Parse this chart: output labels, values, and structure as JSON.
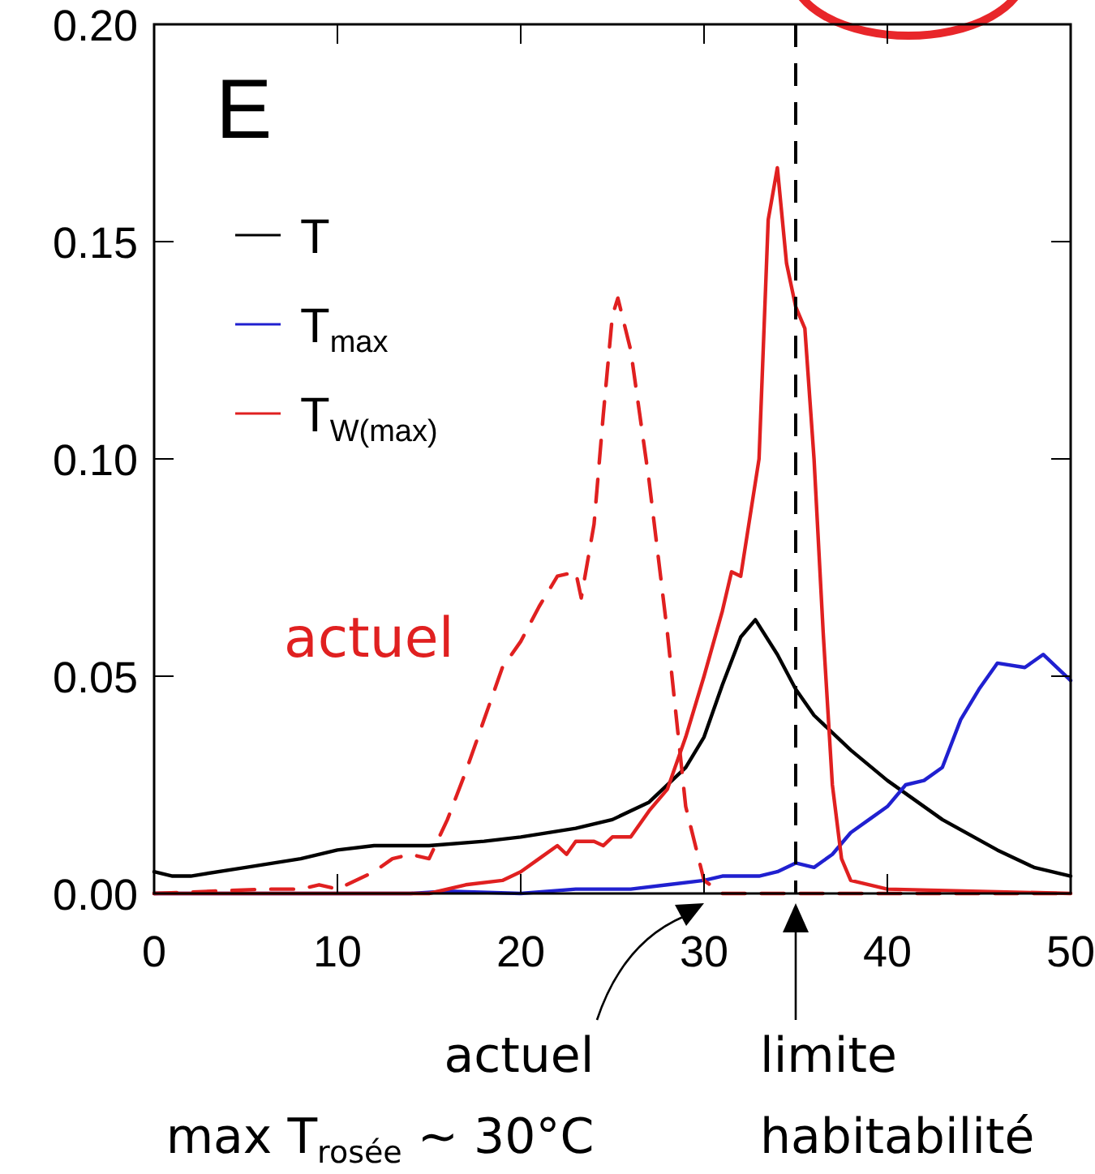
{
  "chart_data": {
    "type": "line",
    "title": "E",
    "xlim": [
      0,
      50
    ],
    "xticks": [
      0,
      10,
      20,
      30,
      40,
      50
    ],
    "ylim": [
      0,
      0.2
    ],
    "yticks": [
      {
        "value": 0,
        "label": "0.00"
      },
      {
        "value": 0.05,
        "label": "0.05"
      },
      {
        "value": 0.1,
        "label": "0.10"
      },
      {
        "value": 0.15,
        "label": "0.15"
      },
      {
        "value": 0.2,
        "label": "0.20"
      }
    ],
    "grid": false,
    "legend": "top left",
    "marker": "none",
    "series": [
      {
        "name": "T",
        "color": "#000000",
        "x": [
          0,
          1,
          2,
          5,
          8,
          10,
          12,
          15,
          18,
          20,
          23,
          25,
          27,
          29,
          30,
          31,
          32,
          32.8,
          34,
          35,
          36,
          38,
          40,
          43,
          46,
          48,
          50
        ],
        "values": [
          0.005,
          0.004,
          0.004,
          0.006,
          0.008,
          0.01,
          0.011,
          0.011,
          0.012,
          0.013,
          0.015,
          0.017,
          0.021,
          0.029,
          0.036,
          0.048,
          0.059,
          0.063,
          0.055,
          0.047,
          0.041,
          0.033,
          0.026,
          0.017,
          0.01,
          0.006,
          0.004
        ]
      },
      {
        "name": "T$_{max}$",
        "color": "#2020d0",
        "x": [
          0,
          14,
          16,
          20,
          23,
          26,
          28,
          30,
          31,
          33,
          34,
          35,
          36,
          37,
          38,
          39,
          40,
          41,
          42,
          43,
          44,
          45,
          46,
          47.5,
          48.5,
          50
        ],
        "values": [
          0,
          0,
          0.0005,
          0,
          0.001,
          0.001,
          0.002,
          0.003,
          0.004,
          0.004,
          0.005,
          0.007,
          0.006,
          0.009,
          0.014,
          0.017,
          0.02,
          0.025,
          0.026,
          0.029,
          0.04,
          0.047,
          0.053,
          0.052,
          0.055,
          0.049
        ]
      },
      {
        "name": "T$_{W(max)}$",
        "color": "#e02020",
        "x": [
          0,
          15,
          17,
          19,
          20,
          21,
          22,
          22.5,
          23,
          24,
          24.5,
          25,
          26,
          27,
          28,
          29,
          30,
          31,
          31.5,
          32,
          33,
          33.5,
          34,
          34.5,
          35,
          35.5,
          36,
          36.5,
          37,
          37.5,
          38,
          40,
          50
        ],
        "values": [
          0,
          0,
          0.002,
          0.003,
          0.005,
          0.008,
          0.011,
          0.009,
          0.012,
          0.012,
          0.011,
          0.013,
          0.013,
          0.019,
          0.024,
          0.036,
          0.05,
          0.065,
          0.074,
          0.073,
          0.1,
          0.155,
          0.167,
          0.145,
          0.135,
          0.13,
          0.1,
          0.06,
          0.025,
          0.008,
          0.003,
          0.001,
          0
        ]
      },
      {
        "color": "#e02020",
        "line_style": "dashed",
        "x": [
          0,
          6,
          8,
          9,
          10,
          12,
          13,
          14,
          15,
          16,
          17,
          18,
          19,
          20,
          21,
          22,
          23,
          23.3,
          24,
          24.5,
          25,
          25.3,
          26,
          26.5,
          27,
          28,
          29,
          30,
          31,
          50
        ],
        "values": [
          0,
          0.001,
          0.001,
          0.002,
          0.001,
          0.005,
          0.008,
          0.009,
          0.008,
          0.017,
          0.028,
          0.04,
          0.052,
          0.058,
          0.066,
          0.073,
          0.074,
          0.068,
          0.085,
          0.11,
          0.133,
          0.137,
          0.125,
          0.11,
          0.095,
          0.06,
          0.02,
          0.003,
          0,
          0
        ]
      }
    ],
    "ref_lines": [
      {
        "axis": "x",
        "value": 35,
        "color": "#000000",
        "line_style": "dashed"
      }
    ],
    "annotations": [
      "actuel",
      "actuel\nmax T$_{rosée}$ ~ 30°C",
      {
        "text": "limite\nhabitabilité",
        "x": 35,
        "y": 0
      }
    ]
  }
}
